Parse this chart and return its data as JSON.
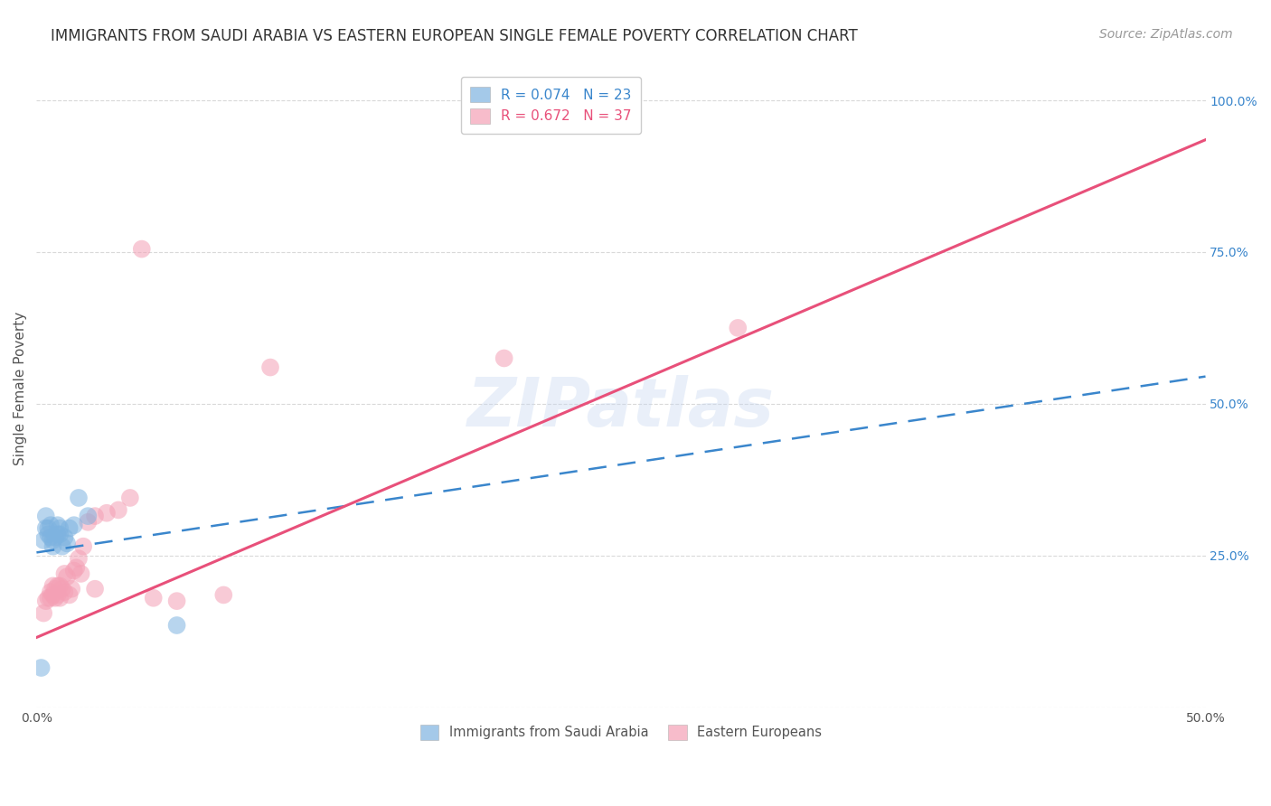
{
  "title": "IMMIGRANTS FROM SAUDI ARABIA VS EASTERN EUROPEAN SINGLE FEMALE POVERTY CORRELATION CHART",
  "source": "Source: ZipAtlas.com",
  "ylabel": "Single Female Poverty",
  "xlim": [
    0.0,
    0.5
  ],
  "ylim": [
    0.0,
    1.05
  ],
  "xticks": [
    0.0,
    0.1,
    0.2,
    0.3,
    0.4,
    0.5
  ],
  "xticklabels": [
    "0.0%",
    "",
    "",
    "",
    "",
    "50.0%"
  ],
  "yticks": [
    0.0,
    0.25,
    0.5,
    0.75,
    1.0
  ],
  "right_yticklabels": [
    "",
    "25.0%",
    "50.0%",
    "75.0%",
    "100.0%"
  ],
  "legend1_label": "R = 0.074   N = 23",
  "legend2_label": "R = 0.672   N = 37",
  "legend_label1_bottom": "Immigrants from Saudi Arabia",
  "legend_label2_bottom": "Eastern Europeans",
  "blue_color": "#7eb3e0",
  "pink_color": "#f4a0b5",
  "blue_line_color": "#3a86cc",
  "pink_line_color": "#e8507a",
  "watermark": "ZIPatlas",
  "background_color": "#ffffff",
  "grid_color": "#d0d0d0",
  "blue_scatter_x": [
    0.002,
    0.003,
    0.004,
    0.004,
    0.005,
    0.005,
    0.006,
    0.006,
    0.007,
    0.007,
    0.008,
    0.009,
    0.009,
    0.01,
    0.01,
    0.011,
    0.012,
    0.013,
    0.014,
    0.016,
    0.018,
    0.022,
    0.06
  ],
  "blue_scatter_y": [
    0.065,
    0.275,
    0.295,
    0.315,
    0.285,
    0.295,
    0.28,
    0.3,
    0.275,
    0.265,
    0.28,
    0.285,
    0.3,
    0.285,
    0.295,
    0.265,
    0.28,
    0.27,
    0.295,
    0.3,
    0.345,
    0.315,
    0.135
  ],
  "pink_scatter_x": [
    0.003,
    0.004,
    0.005,
    0.006,
    0.006,
    0.007,
    0.007,
    0.008,
    0.008,
    0.009,
    0.009,
    0.01,
    0.01,
    0.011,
    0.012,
    0.012,
    0.013,
    0.014,
    0.015,
    0.016,
    0.017,
    0.018,
    0.019,
    0.02,
    0.022,
    0.025,
    0.03,
    0.035,
    0.04,
    0.05,
    0.06,
    0.08,
    0.1,
    0.2,
    0.3,
    0.045,
    0.025
  ],
  "pink_scatter_y": [
    0.155,
    0.175,
    0.18,
    0.18,
    0.19,
    0.185,
    0.2,
    0.18,
    0.195,
    0.185,
    0.2,
    0.18,
    0.2,
    0.195,
    0.22,
    0.19,
    0.215,
    0.185,
    0.195,
    0.225,
    0.23,
    0.245,
    0.22,
    0.265,
    0.305,
    0.315,
    0.32,
    0.325,
    0.345,
    0.18,
    0.175,
    0.185,
    0.56,
    0.575,
    0.625,
    0.755,
    0.195
  ],
  "blue_line_x0": 0.0,
  "blue_line_x1": 0.5,
  "blue_line_y0": 0.255,
  "blue_line_y1": 0.545,
  "pink_line_x0": 0.0,
  "pink_line_x1": 0.5,
  "pink_line_y0": 0.115,
  "pink_line_y1": 0.935,
  "title_fontsize": 12,
  "source_fontsize": 10,
  "axis_label_fontsize": 11,
  "tick_fontsize": 10,
  "tick_color_right": "#3a86cc",
  "tick_color_bottom": "#555555"
}
